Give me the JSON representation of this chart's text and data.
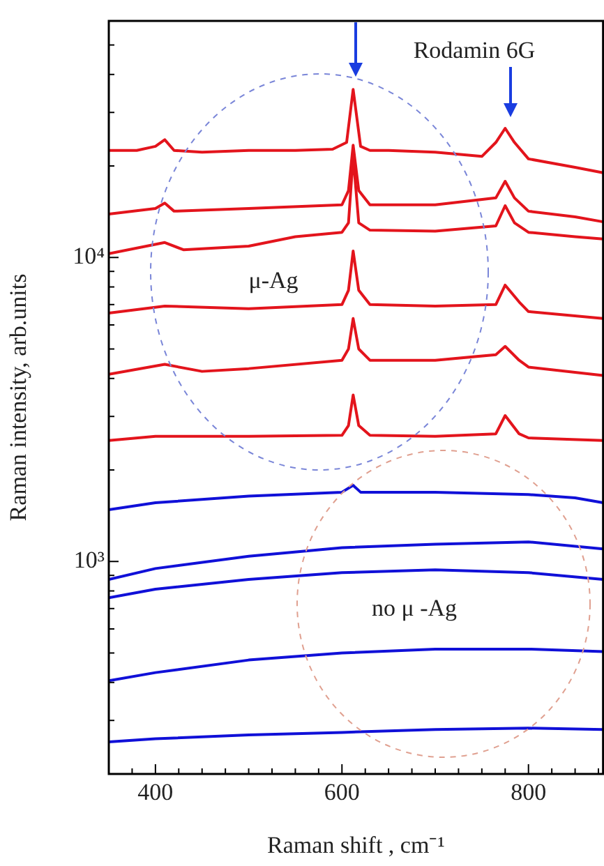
{
  "chart_data": {
    "type": "line",
    "xlabel": "Raman shift , cm⁻¹",
    "ylabel": "Raman intensity, arb.units",
    "annotations": [
      "Rodamin 6G",
      "μ-Ag",
      "no μ -Ag"
    ],
    "log": "y",
    "grid": false,
    "legend": false,
    "marker": "none",
    "line_style": "solid",
    "xlim": [
      350,
      880
    ],
    "ylim": [
      200,
      60000
    ],
    "xticks": [
      {
        "value": 375,
        "label": null
      },
      {
        "value": 400,
        "label": "400"
      },
      {
        "value": 425,
        "label": null
      },
      {
        "value": 450,
        "label": null
      },
      {
        "value": 475,
        "label": null
      },
      {
        "value": 500,
        "label": null
      },
      {
        "value": 525,
        "label": null
      },
      {
        "value": 550,
        "label": null
      },
      {
        "value": 575,
        "label": null
      },
      {
        "value": 600,
        "label": "600"
      },
      {
        "value": 625,
        "label": null
      },
      {
        "value": 650,
        "label": null
      },
      {
        "value": 675,
        "label": null
      },
      {
        "value": 700,
        "label": null
      },
      {
        "value": 725,
        "label": null
      },
      {
        "value": 750,
        "label": null
      },
      {
        "value": 775,
        "label": null
      },
      {
        "value": 800,
        "label": "800"
      },
      {
        "value": 825,
        "label": null
      },
      {
        "value": 850,
        "label": null
      },
      {
        "value": 875,
        "label": null
      }
    ],
    "yticks": [
      {
        "value": 200,
        "label": null
      },
      {
        "value": 300,
        "label": null
      },
      {
        "value": 400,
        "label": null
      },
      {
        "value": 500,
        "label": null
      },
      {
        "value": 600,
        "label": null
      },
      {
        "value": 700,
        "label": null
      },
      {
        "value": 800,
        "label": null
      },
      {
        "value": 900,
        "label": null
      },
      {
        "value": 1000,
        "label": "10³"
      },
      {
        "value": 2000,
        "label": null
      },
      {
        "value": 3000,
        "label": null
      },
      {
        "value": 4000,
        "label": null
      },
      {
        "value": 5000,
        "label": null
      },
      {
        "value": 6000,
        "label": null
      },
      {
        "value": 7000,
        "label": null
      },
      {
        "value": 8000,
        "label": null
      },
      {
        "value": 9000,
        "label": null
      },
      {
        "value": 10000,
        "label": "10⁴"
      },
      {
        "value": 20000,
        "label": null
      },
      {
        "value": 30000,
        "label": null
      },
      {
        "value": 40000,
        "label": null
      },
      {
        "value": 50000,
        "label": null
      }
    ],
    "series": [
      {
        "color": "#e3141c",
        "x": [
          350,
          380,
          400,
          410,
          420,
          450,
          500,
          550,
          590,
          605,
          612,
          620,
          630,
          650,
          700,
          750,
          765,
          775,
          785,
          800,
          850,
          880
        ],
        "values": [
          22500,
          22500,
          23200,
          24400,
          22500,
          22200,
          22500,
          22500,
          22700,
          23900,
          35700,
          23200,
          22500,
          22500,
          22200,
          21500,
          23900,
          26600,
          23900,
          21100,
          19800,
          19000
        ]
      },
      {
        "color": "#e3141c",
        "x": [
          350,
          400,
          410,
          420,
          500,
          600,
          607,
          612,
          618,
          630,
          700,
          765,
          775,
          785,
          800,
          850,
          880
        ],
        "values": [
          13900,
          14500,
          15100,
          14200,
          14500,
          14900,
          16600,
          23400,
          16600,
          14900,
          14900,
          15700,
          17800,
          15700,
          14200,
          13600,
          13100
        ]
      },
      {
        "color": "#e3141c",
        "x": [
          350,
          410,
          430,
          500,
          550,
          600,
          607,
          612,
          618,
          630,
          700,
          765,
          775,
          785,
          800,
          850,
          880
        ],
        "values": [
          10300,
          11200,
          10600,
          10900,
          11700,
          12100,
          13000,
          21500,
          13000,
          12300,
          12200,
          12700,
          14800,
          13000,
          12100,
          11700,
          11500
        ]
      },
      {
        "color": "#e3141c",
        "x": [
          350,
          410,
          500,
          600,
          607,
          612,
          618,
          630,
          700,
          765,
          775,
          790,
          800,
          880
        ],
        "values": [
          6560,
          6920,
          6780,
          7000,
          7800,
          10500,
          7800,
          7000,
          6920,
          7000,
          8110,
          7140,
          6640,
          6300
        ]
      },
      {
        "color": "#e3141c",
        "x": [
          350,
          410,
          450,
          500,
          600,
          607,
          612,
          618,
          630,
          700,
          765,
          775,
          790,
          800,
          880
        ],
        "values": [
          4130,
          4450,
          4220,
          4310,
          4590,
          5000,
          6300,
          5000,
          4590,
          4590,
          4790,
          5100,
          4590,
          4360,
          4090
        ]
      },
      {
        "color": "#e3141c",
        "x": [
          350,
          400,
          500,
          600,
          607,
          612,
          618,
          630,
          700,
          765,
          775,
          790,
          800,
          880
        ],
        "values": [
          2500,
          2580,
          2580,
          2600,
          2800,
          3530,
          2800,
          2600,
          2580,
          2630,
          3020,
          2630,
          2550,
          2500
        ]
      },
      {
        "color": "#1010d8",
        "x": [
          350,
          400,
          500,
          600,
          612,
          620,
          700,
          800,
          850,
          880
        ],
        "values": [
          1480,
          1560,
          1640,
          1690,
          1780,
          1690,
          1690,
          1660,
          1620,
          1560
        ]
      },
      {
        "color": "#1010d8",
        "x": [
          350,
          400,
          500,
          600,
          700,
          800,
          880
        ],
        "values": [
          873,
          948,
          1040,
          1110,
          1140,
          1160,
          1100
        ]
      },
      {
        "color": "#1010d8",
        "x": [
          350,
          400,
          500,
          600,
          700,
          800,
          880
        ],
        "values": [
          760,
          811,
          873,
          919,
          939,
          919,
          873
        ]
      },
      {
        "color": "#1010d8",
        "x": [
          350,
          400,
          500,
          600,
          700,
          800,
          880
        ],
        "values": [
          405,
          431,
          474,
          500,
          515,
          515,
          505
        ]
      },
      {
        "color": "#1010d8",
        "x": [
          350,
          400,
          500,
          600,
          700,
          800,
          880
        ],
        "values": [
          255,
          261,
          269,
          274,
          280,
          283,
          280
        ]
      }
    ]
  }
}
